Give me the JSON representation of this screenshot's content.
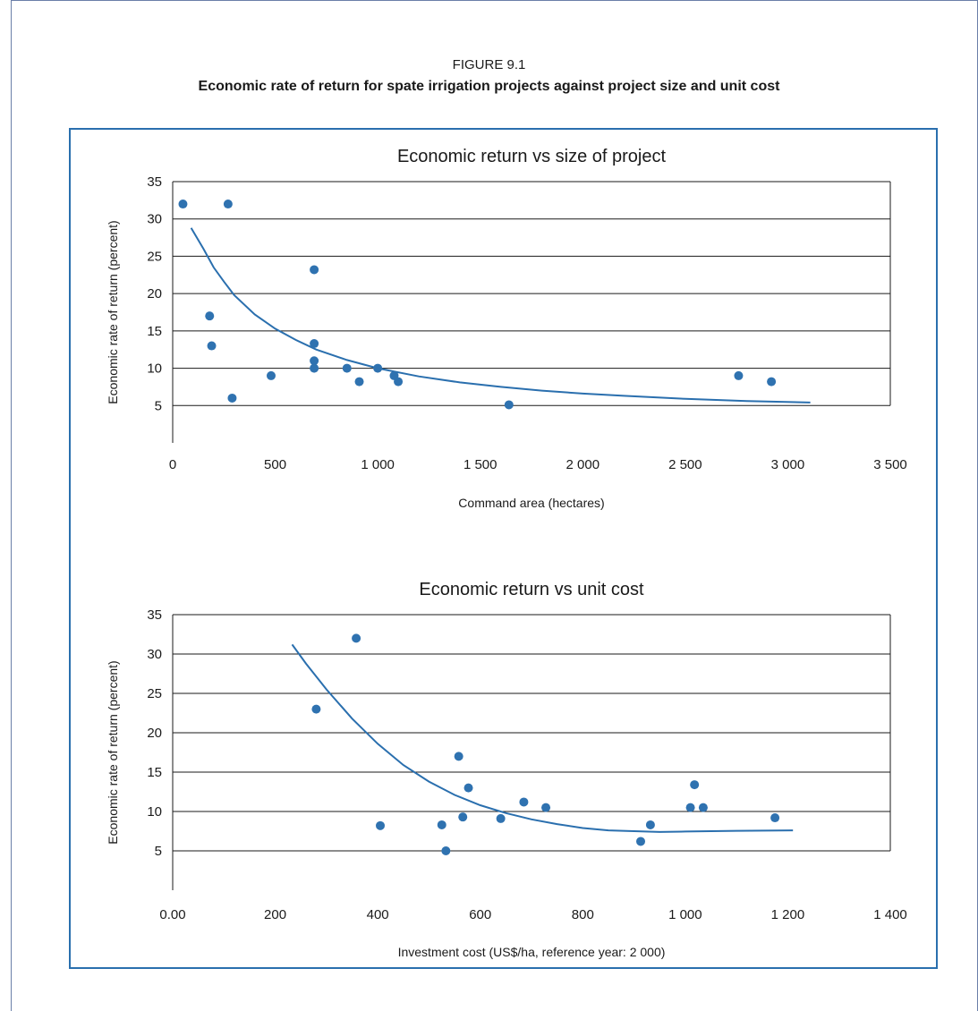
{
  "figure": {
    "label": "FIGURE 9.1",
    "title": "Economic rate of return for spate irrigation projects against project size and unit cost"
  },
  "colors": {
    "accent": "#2a6fae",
    "points": "#2f72b0",
    "grid": "#1a1a1a"
  },
  "chart_data": [
    {
      "type": "scatter",
      "title": "Economic return vs size of project",
      "xlabel": "Command area (hectares)",
      "ylabel": "Economic rate of return (percent)",
      "xlim": [
        0,
        3500
      ],
      "ylim": [
        0,
        35
      ],
      "xticks": [
        0,
        500,
        1000,
        1500,
        2000,
        2500,
        3000,
        3500
      ],
      "xtick_labels": [
        "0",
        "500",
        "1 000",
        "1 500",
        "2 000",
        "2 500",
        "3 000",
        "3 500"
      ],
      "yticks": [
        5,
        10,
        15,
        20,
        25,
        30,
        35
      ],
      "ytick_labels": [
        "5",
        "10",
        "15",
        "20",
        "25",
        "30",
        "35"
      ],
      "grid": "horizontal",
      "series": [
        {
          "points": [
            [
              50,
              32
            ],
            [
              270,
              32
            ],
            [
              180,
              17
            ],
            [
              190,
              13
            ],
            [
              290,
              6
            ],
            [
              480,
              9
            ],
            [
              690,
              23.2
            ],
            [
              690,
              13.3
            ],
            [
              690,
              11
            ],
            [
              690,
              10
            ],
            [
              850,
              10
            ],
            [
              910,
              8.2
            ],
            [
              1000,
              10
            ],
            [
              1080,
              9
            ],
            [
              1100,
              8.2
            ],
            [
              1640,
              5.1
            ],
            [
              2760,
              9
            ],
            [
              2920,
              8.2
            ]
          ]
        }
      ],
      "trendline": [
        [
          90,
          28.8
        ],
        [
          150,
          26
        ],
        [
          200,
          23.5
        ],
        [
          250,
          21.6
        ],
        [
          300,
          19.8
        ],
        [
          400,
          17.2
        ],
        [
          500,
          15.3
        ],
        [
          600,
          13.8
        ],
        [
          700,
          12.5
        ],
        [
          850,
          11.1
        ],
        [
          1000,
          10
        ],
        [
          1200,
          8.9
        ],
        [
          1400,
          8.1
        ],
        [
          1600,
          7.5
        ],
        [
          1800,
          7
        ],
        [
          2000,
          6.6
        ],
        [
          2200,
          6.3
        ],
        [
          2500,
          5.9
        ],
        [
          2800,
          5.6
        ],
        [
          3110,
          5.4
        ]
      ]
    },
    {
      "type": "scatter",
      "title": "Economic return vs unit cost",
      "xlabel": "Investment cost (US$/ha, reference year: 2 000)",
      "ylabel": "Economic rate of return (percent)",
      "xlim": [
        0,
        1400
      ],
      "ylim": [
        0,
        35
      ],
      "xticks": [
        0,
        200,
        400,
        600,
        800,
        1000,
        1200,
        1400
      ],
      "xtick_labels": [
        "0.00",
        "200",
        "400",
        "600",
        "800",
        "1 000",
        "1 200",
        "1 400"
      ],
      "yticks": [
        5,
        10,
        15,
        20,
        25,
        30,
        35
      ],
      "ytick_labels": [
        "5",
        "10",
        "15",
        "20",
        "25",
        "30",
        "35"
      ],
      "grid": "horizontal",
      "series": [
        {
          "points": [
            [
              280,
              23
            ],
            [
              358,
              32
            ],
            [
              405,
              8.2
            ],
            [
              525,
              8.3
            ],
            [
              533,
              5
            ],
            [
              558,
              17
            ],
            [
              566,
              9.3
            ],
            [
              577,
              13
            ],
            [
              640,
              9.1
            ],
            [
              685,
              11.2
            ],
            [
              728,
              10.5
            ],
            [
              913,
              6.2
            ],
            [
              932,
              8.3
            ],
            [
              1010,
              10.5
            ],
            [
              1018,
              13.4
            ],
            [
              1035,
              10.5
            ],
            [
              1175,
              9.2
            ]
          ]
        }
      ],
      "trendline": [
        [
          233,
          31.2
        ],
        [
          260,
          28.8
        ],
        [
          300,
          25.5
        ],
        [
          350,
          21.8
        ],
        [
          400,
          18.6
        ],
        [
          450,
          15.9
        ],
        [
          500,
          13.8
        ],
        [
          550,
          12.1
        ],
        [
          600,
          10.8
        ],
        [
          650,
          9.8
        ],
        [
          700,
          9
        ],
        [
          750,
          8.4
        ],
        [
          800,
          7.9
        ],
        [
          850,
          7.6
        ],
        [
          900,
          7.5
        ],
        [
          950,
          7.4
        ],
        [
          1000,
          7.45
        ],
        [
          1100,
          7.55
        ],
        [
          1210,
          7.6
        ]
      ]
    }
  ]
}
